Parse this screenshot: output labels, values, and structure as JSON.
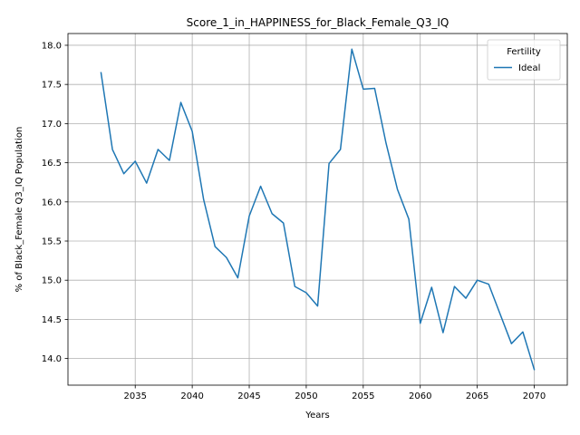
{
  "chart_data": {
    "type": "line",
    "title": "Score_1_in_HAPPINESS_for_Black_Female_Q3_IQ",
    "xlabel": "Years",
    "ylabel": "% of Black_Female Q3_IQ Population",
    "xlim": [
      2029.1,
      2072.9
    ],
    "ylim": [
      13.66,
      18.15
    ],
    "x_ticks": [
      2035,
      2040,
      2045,
      2050,
      2055,
      2060,
      2065,
      2070
    ],
    "y_ticks": [
      14.0,
      14.5,
      15.0,
      15.5,
      16.0,
      16.5,
      17.0,
      17.5,
      18.0
    ],
    "x_tick_labels": [
      "2035",
      "2040",
      "2045",
      "2050",
      "2055",
      "2060",
      "2065",
      "2070"
    ],
    "y_tick_labels": [
      "14.0",
      "14.5",
      "15.0",
      "15.5",
      "16.0",
      "16.5",
      "17.0",
      "17.5",
      "18.0"
    ],
    "grid": true,
    "legend": {
      "title": "Fertility",
      "placement": "top-right",
      "entries": [
        "Ideal"
      ]
    },
    "series": [
      {
        "name": "Ideal",
        "color": "#1f77b4",
        "x": [
          2032,
          2033,
          2034,
          2035,
          2036,
          2037,
          2038,
          2039,
          2040,
          2041,
          2042,
          2043,
          2044,
          2045,
          2046,
          2047,
          2048,
          2049,
          2050,
          2051,
          2052,
          2053,
          2054,
          2055,
          2056,
          2057,
          2058,
          2059,
          2060,
          2061,
          2062,
          2063,
          2064,
          2065,
          2066,
          2067,
          2068,
          2069,
          2070
        ],
        "values": [
          17.65,
          16.67,
          16.36,
          16.52,
          16.24,
          16.67,
          16.53,
          17.27,
          16.9,
          16.03,
          15.43,
          15.29,
          15.03,
          15.82,
          16.2,
          15.85,
          15.73,
          14.92,
          14.84,
          14.67,
          16.49,
          16.67,
          17.95,
          17.44,
          17.45,
          16.75,
          16.16,
          15.78,
          14.45,
          14.91,
          14.33,
          14.92,
          14.77,
          15.0,
          14.95,
          14.57,
          14.19,
          14.34,
          13.86
        ]
      }
    ]
  }
}
